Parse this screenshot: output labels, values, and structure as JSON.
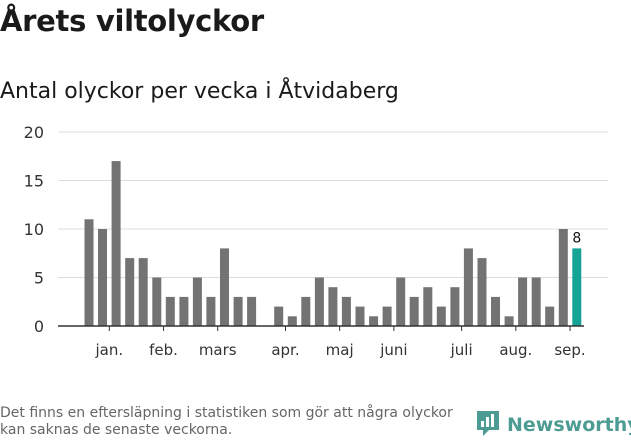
{
  "title": "Årets viltolyckor",
  "subtitle": "Antal olyckor per vecka i Åtvidaberg",
  "footnote": "Det finns en eftersläpning i statistiken som gör att några olyckor kan saknas de senaste veckorna.",
  "brand": {
    "name": "Newsworthy",
    "icon": "newsworthy-logo-icon",
    "color": "#4d9c94"
  },
  "colors": {
    "bar": "#737373",
    "highlight": "#14a394",
    "grid": "#dddddd",
    "axis": "#333333"
  },
  "chart_data": {
    "type": "bar",
    "x": [
      1,
      2,
      3,
      4,
      5,
      6,
      7,
      8,
      9,
      10,
      11,
      12,
      13,
      14,
      15,
      16,
      17,
      18,
      19,
      20,
      21,
      22,
      23,
      24,
      25,
      26,
      27,
      28,
      29,
      30,
      31,
      32,
      33,
      34,
      35,
      36,
      37,
      38
    ],
    "values": [
      11,
      10,
      17,
      7,
      7,
      5,
      3,
      3,
      5,
      3,
      8,
      3,
      3,
      0,
      2,
      1,
      3,
      5,
      4,
      3,
      2,
      1,
      2,
      5,
      3,
      4,
      2,
      4,
      8,
      7,
      3,
      1,
      5,
      5,
      2,
      10,
      8,
      null
    ],
    "highlight_index": 36,
    "highlight_label": "8",
    "ylim": [
      0,
      20
    ],
    "yticks": [
      0,
      5,
      10,
      15,
      20
    ],
    "month_labels": [
      "jan.",
      "feb.",
      "mars",
      "apr.",
      "maj",
      "juni",
      "juli",
      "aug.",
      "sep."
    ],
    "month_label_after_bar": [
      2,
      6,
      10,
      15,
      19,
      23,
      28,
      32,
      36
    ],
    "grid": true,
    "legend": "none"
  }
}
